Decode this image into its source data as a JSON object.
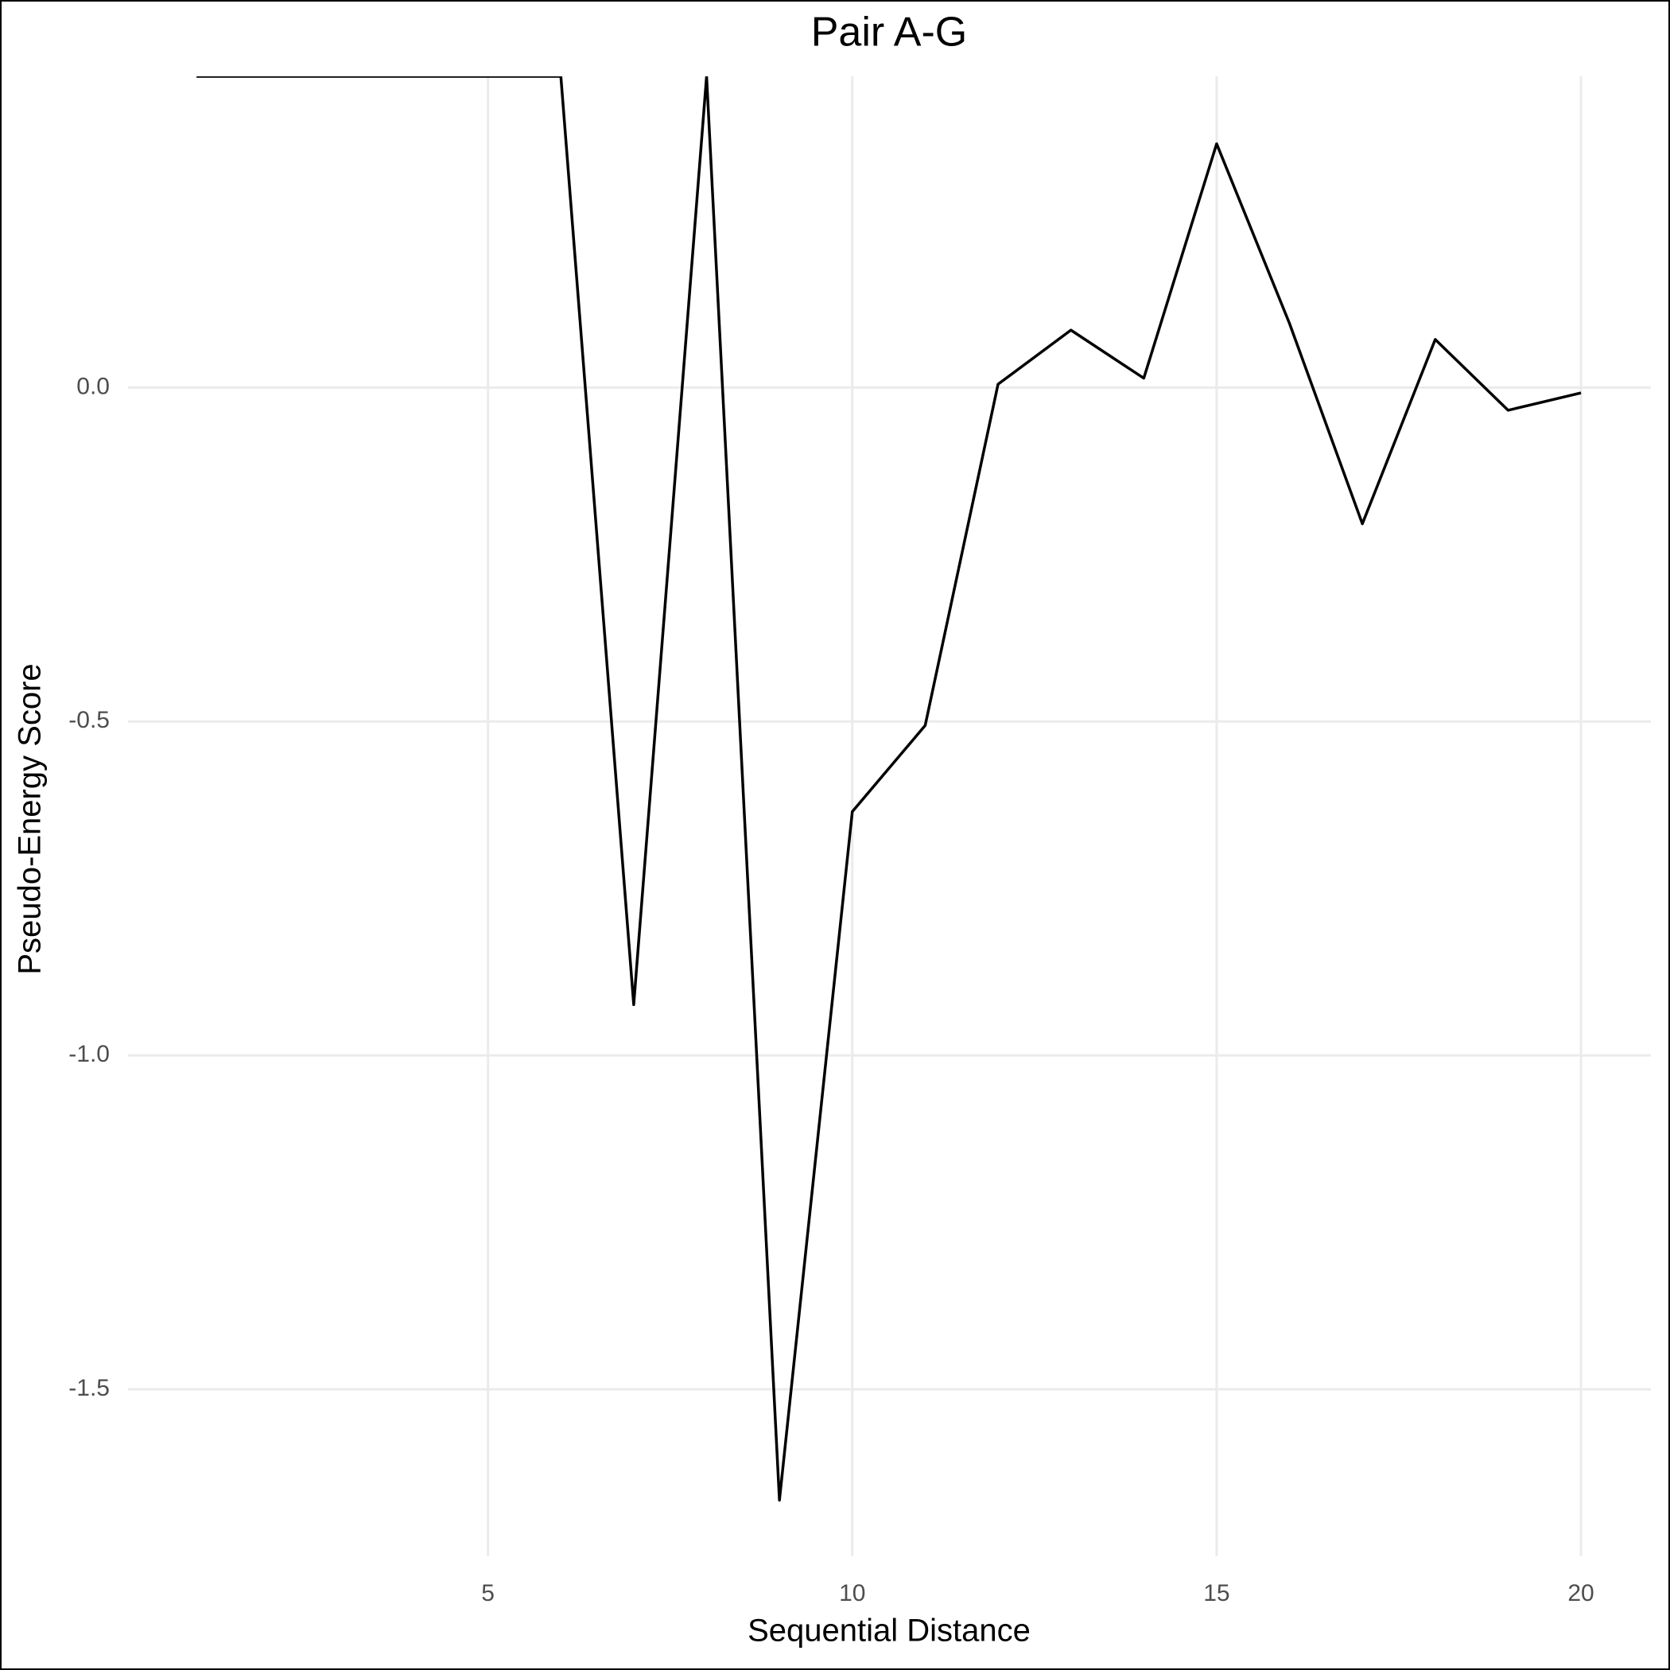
{
  "chart_data": {
    "type": "line",
    "title": "Pair A-G",
    "x_label": "Sequential Distance",
    "y_label": "Pseudo-Energy Score",
    "x": [
      1,
      2,
      3,
      4,
      5,
      6,
      7,
      8,
      9,
      10,
      11,
      12,
      13,
      14,
      15,
      16,
      17,
      18,
      19,
      20
    ],
    "series": [
      {
        "color": "#000000",
        "values": [
          0.466,
          0.466,
          0.466,
          0.466,
          0.466,
          0.466,
          -0.924,
          0.466,
          -1.666,
          -0.635,
          -0.506,
          0.005,
          0.086,
          0.014,
          0.365,
          0.096,
          -0.204,
          0.072,
          -0.034,
          -0.008
        ]
      }
    ],
    "xlim": [
      0.06,
      20.96
    ],
    "xticks": [
      5,
      10,
      15,
      20
    ],
    "ylim": [
      -1.75,
      0.466
    ],
    "yticks": [
      {
        "value": -1.5,
        "label": "-1.5"
      },
      {
        "value": -1.0,
        "label": "-1.0"
      },
      {
        "value": -0.5,
        "label": "-0.5"
      },
      {
        "value": 0,
        "label": "0.0"
      }
    ],
    "grid": true
  }
}
